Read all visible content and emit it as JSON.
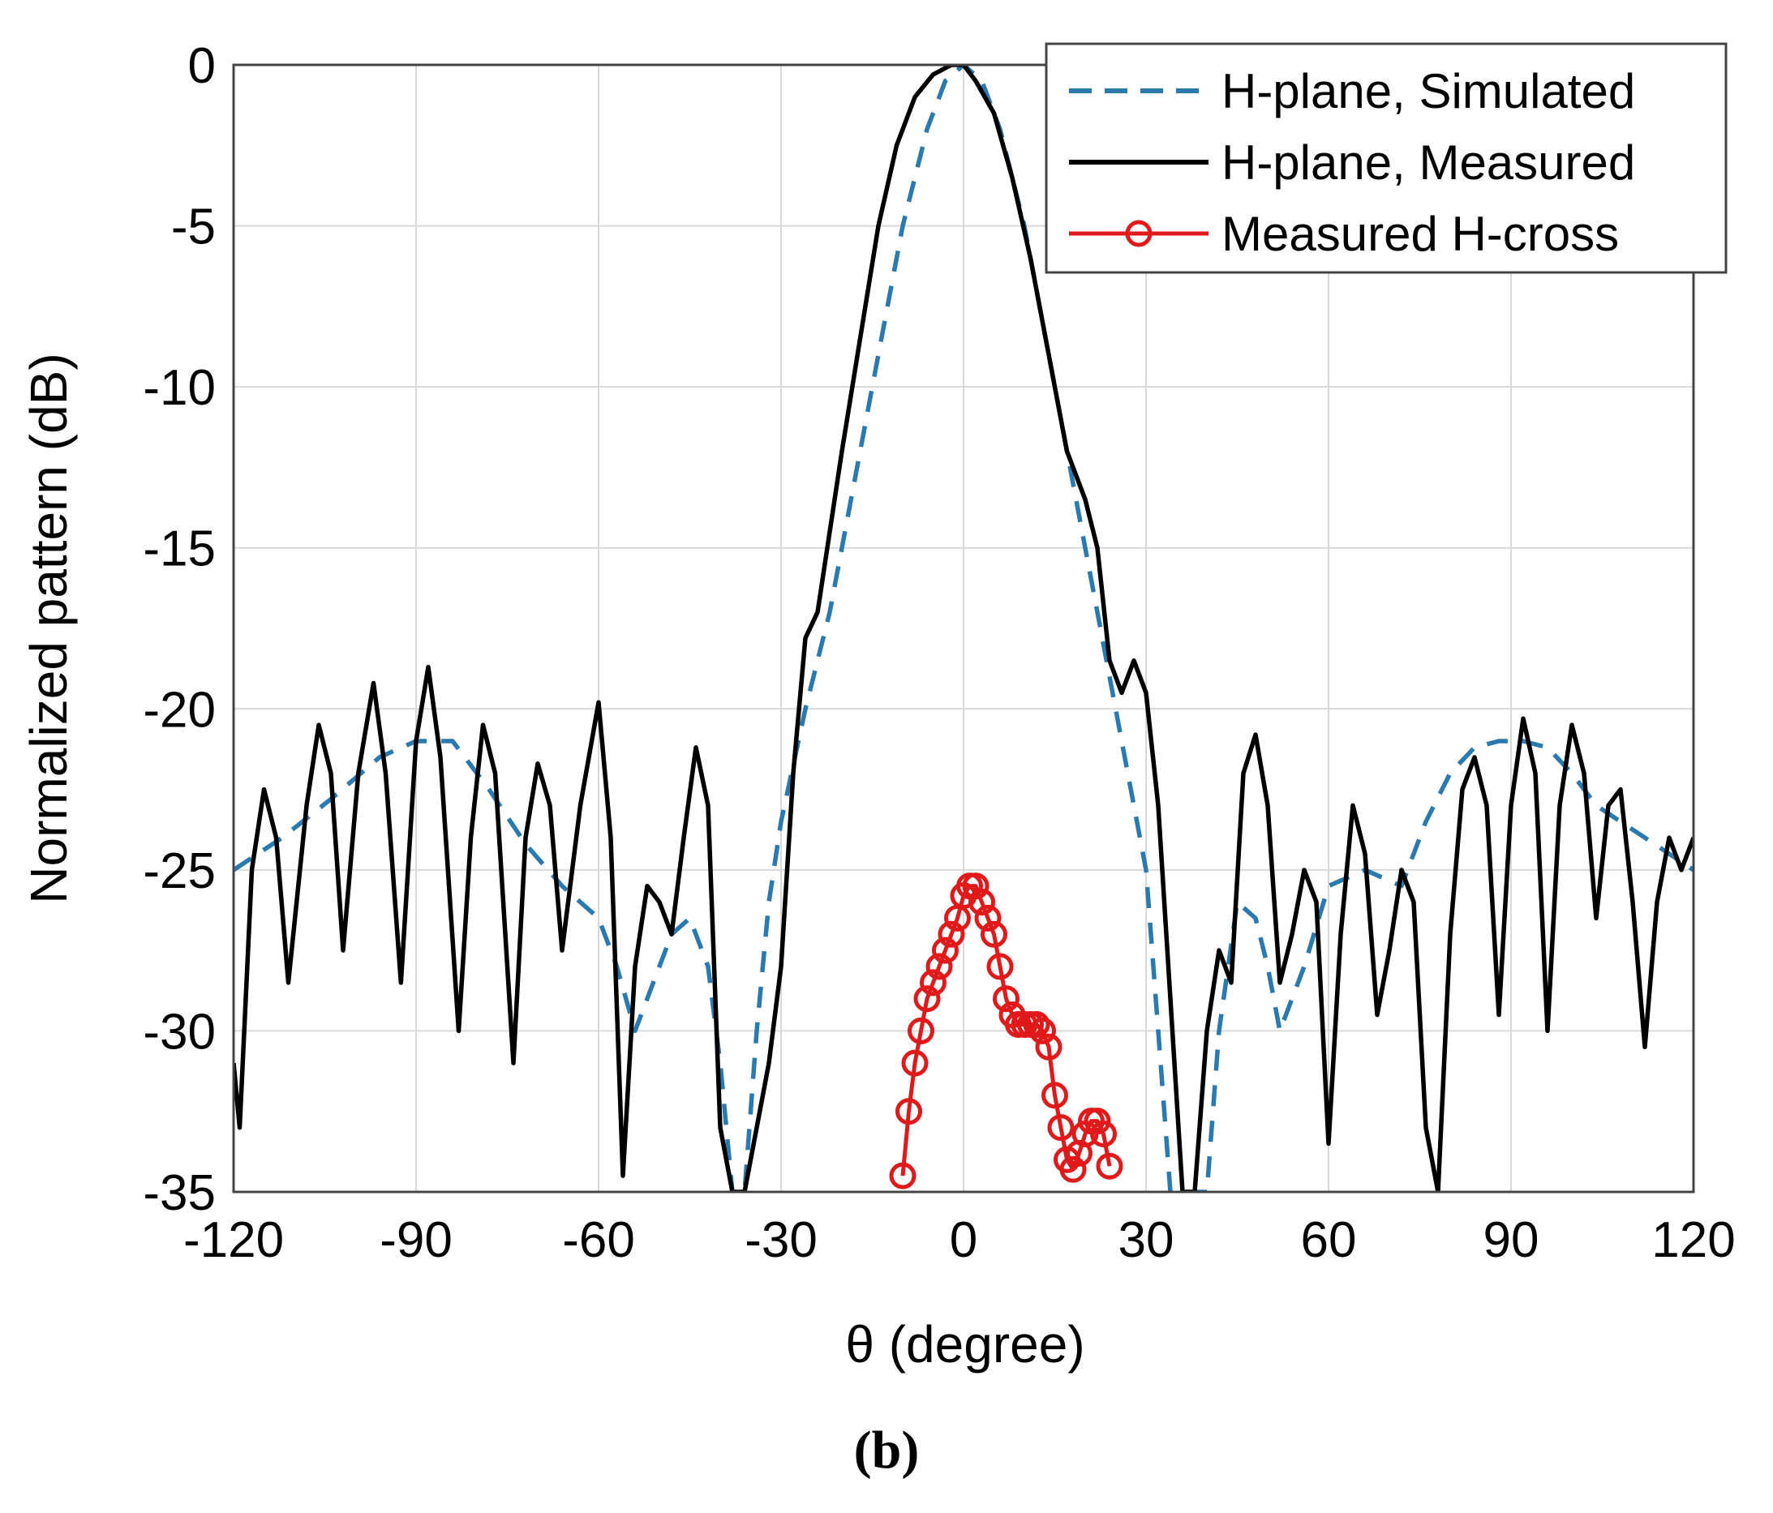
{
  "chart_data": {
    "type": "line",
    "xlabel": "θ (degree)",
    "ylabel": "Normalized pattern (dB)",
    "panel_label": "(b)",
    "xlim": [
      -120,
      120
    ],
    "ylim": [
      -35,
      0
    ],
    "xticks": [
      -120,
      -90,
      -60,
      -30,
      0,
      30,
      60,
      90,
      120
    ],
    "yticks": [
      0,
      -5,
      -10,
      -15,
      -20,
      -25,
      -30,
      -35
    ],
    "grid": true,
    "legend_position": "top-right",
    "series": [
      {
        "name": "H-plane, Simulated",
        "color": "#2a7ab0",
        "style": "dashed",
        "marker": "none",
        "x": [
          -120,
          -112,
          -104,
          -96,
          -90,
          -84,
          -78,
          -72,
          -66,
          -60,
          -57,
          -54,
          -52,
          -48,
          -45,
          -42,
          -40,
          -38,
          -36,
          -34,
          -32,
          -30,
          -26,
          -22,
          -18,
          -14,
          -10,
          -6,
          -3,
          0,
          3,
          6,
          10,
          14,
          18,
          22,
          26,
          30,
          32,
          34,
          36,
          38,
          40,
          42,
          45,
          48,
          50,
          52,
          56,
          60,
          66,
          72,
          76,
          80,
          84,
          88,
          92,
          96,
          100,
          104,
          108,
          112,
          116,
          120
        ],
        "y": [
          -25,
          -24,
          -22.8,
          -21.5,
          -21,
          -21,
          -22.5,
          -24.2,
          -25.5,
          -26.5,
          -28,
          -30,
          -29,
          -27,
          -26.5,
          -28,
          -31,
          -35,
          -35,
          -30,
          -26,
          -23.5,
          -20,
          -17,
          -13,
          -9,
          -5,
          -2,
          -0.5,
          0,
          -0.5,
          -2,
          -5,
          -9,
          -13,
          -17,
          -21,
          -25,
          -30,
          -35,
          -35,
          -35,
          -35,
          -30,
          -26,
          -26.5,
          -28,
          -30,
          -28,
          -25.5,
          -25,
          -25.5,
          -23.5,
          -22,
          -21.2,
          -21,
          -21,
          -21.2,
          -22,
          -23,
          -23.5,
          -24,
          -24.5,
          -25
        ]
      },
      {
        "name": "H-plane, Measured",
        "color": "#000000",
        "style": "solid",
        "marker": "none",
        "x": [
          -120,
          -119,
          -117,
          -115,
          -113,
          -111,
          -108,
          -106,
          -104,
          -102,
          -99.5,
          -97,
          -95,
          -92.5,
          -90,
          -88,
          -86,
          -83,
          -81,
          -79,
          -77,
          -74,
          -72,
          -70,
          -68,
          -66,
          -63,
          -60,
          -58,
          -56,
          -54,
          -52,
          -50,
          -48,
          -46,
          -44,
          -42,
          -40,
          -38,
          -36,
          -34,
          -32,
          -30,
          -28,
          -26,
          -24,
          -22,
          -20,
          -17,
          -14,
          -11,
          -8,
          -5,
          -2,
          0,
          2,
          5,
          8,
          11,
          14,
          17,
          20,
          22,
          24,
          26,
          28,
          30,
          32,
          34,
          36,
          38,
          40,
          42,
          44,
          46,
          48,
          50,
          52,
          54,
          56,
          58,
          60,
          62,
          64,
          66,
          68,
          70,
          72,
          74,
          76,
          78,
          80,
          82,
          84,
          86,
          88,
          90,
          92,
          94,
          96,
          98,
          100,
          102,
          104,
          106,
          108,
          110,
          112,
          114,
          116,
          118,
          120
        ],
        "y": [
          -31,
          -33,
          -25,
          -22.5,
          -24,
          -28.5,
          -23,
          -20.5,
          -22,
          -27.5,
          -22,
          -19.2,
          -22,
          -28.5,
          -21,
          -18.7,
          -21.5,
          -30,
          -24,
          -20.5,
          -22,
          -31,
          -24,
          -21.7,
          -23,
          -27.5,
          -23,
          -19.8,
          -24,
          -34.5,
          -28,
          -25.5,
          -26,
          -27,
          -24,
          -21.2,
          -23,
          -33,
          -36,
          -36,
          -33,
          -31,
          -28,
          -22,
          -17.8,
          -17,
          -14.5,
          -12,
          -8.5,
          -5,
          -2.5,
          -1,
          -0.3,
          0,
          0,
          -0.5,
          -1.5,
          -3.5,
          -6,
          -9,
          -12,
          -13.5,
          -15,
          -18.5,
          -19.5,
          -18.5,
          -19.5,
          -23,
          -29,
          -36,
          -36,
          -30,
          -27.5,
          -28.5,
          -22,
          -20.8,
          -23,
          -28.5,
          -27,
          -25,
          -26,
          -33.5,
          -27,
          -23,
          -24.5,
          -29.5,
          -27.5,
          -25,
          -26,
          -33,
          -35,
          -27,
          -22.5,
          -21.5,
          -23,
          -29.5,
          -23,
          -20.3,
          -22,
          -30,
          -23,
          -20.5,
          -22,
          -26.5,
          -23,
          -22.5,
          -26,
          -30.5,
          -26,
          -24,
          -25,
          -24
        ]
      },
      {
        "name": "Measured H-cross",
        "color": "#e0191b",
        "style": "solid",
        "marker": "circle",
        "x": [
          -10,
          -9,
          -8,
          -7,
          -6,
          -5,
          -4,
          -3,
          -2,
          -1,
          0,
          1,
          2,
          3,
          4,
          5,
          6,
          7,
          8,
          9,
          10,
          11,
          12,
          13,
          14,
          15,
          16,
          17,
          18,
          19,
          20,
          21,
          22,
          23,
          24
        ],
        "y": [
          -34.5,
          -32.5,
          -31,
          -30,
          -29,
          -28.5,
          -28,
          -27.5,
          -27,
          -26.5,
          -25.8,
          -25.5,
          -25.5,
          -26,
          -26.5,
          -27,
          -28,
          -29,
          -29.5,
          -29.8,
          -29.8,
          -29.8,
          -29.8,
          -30,
          -30.5,
          -32,
          -33,
          -34,
          -34.3,
          -33.8,
          -33.2,
          -32.8,
          -32.8,
          -33.2,
          -34.2
        ]
      }
    ]
  }
}
